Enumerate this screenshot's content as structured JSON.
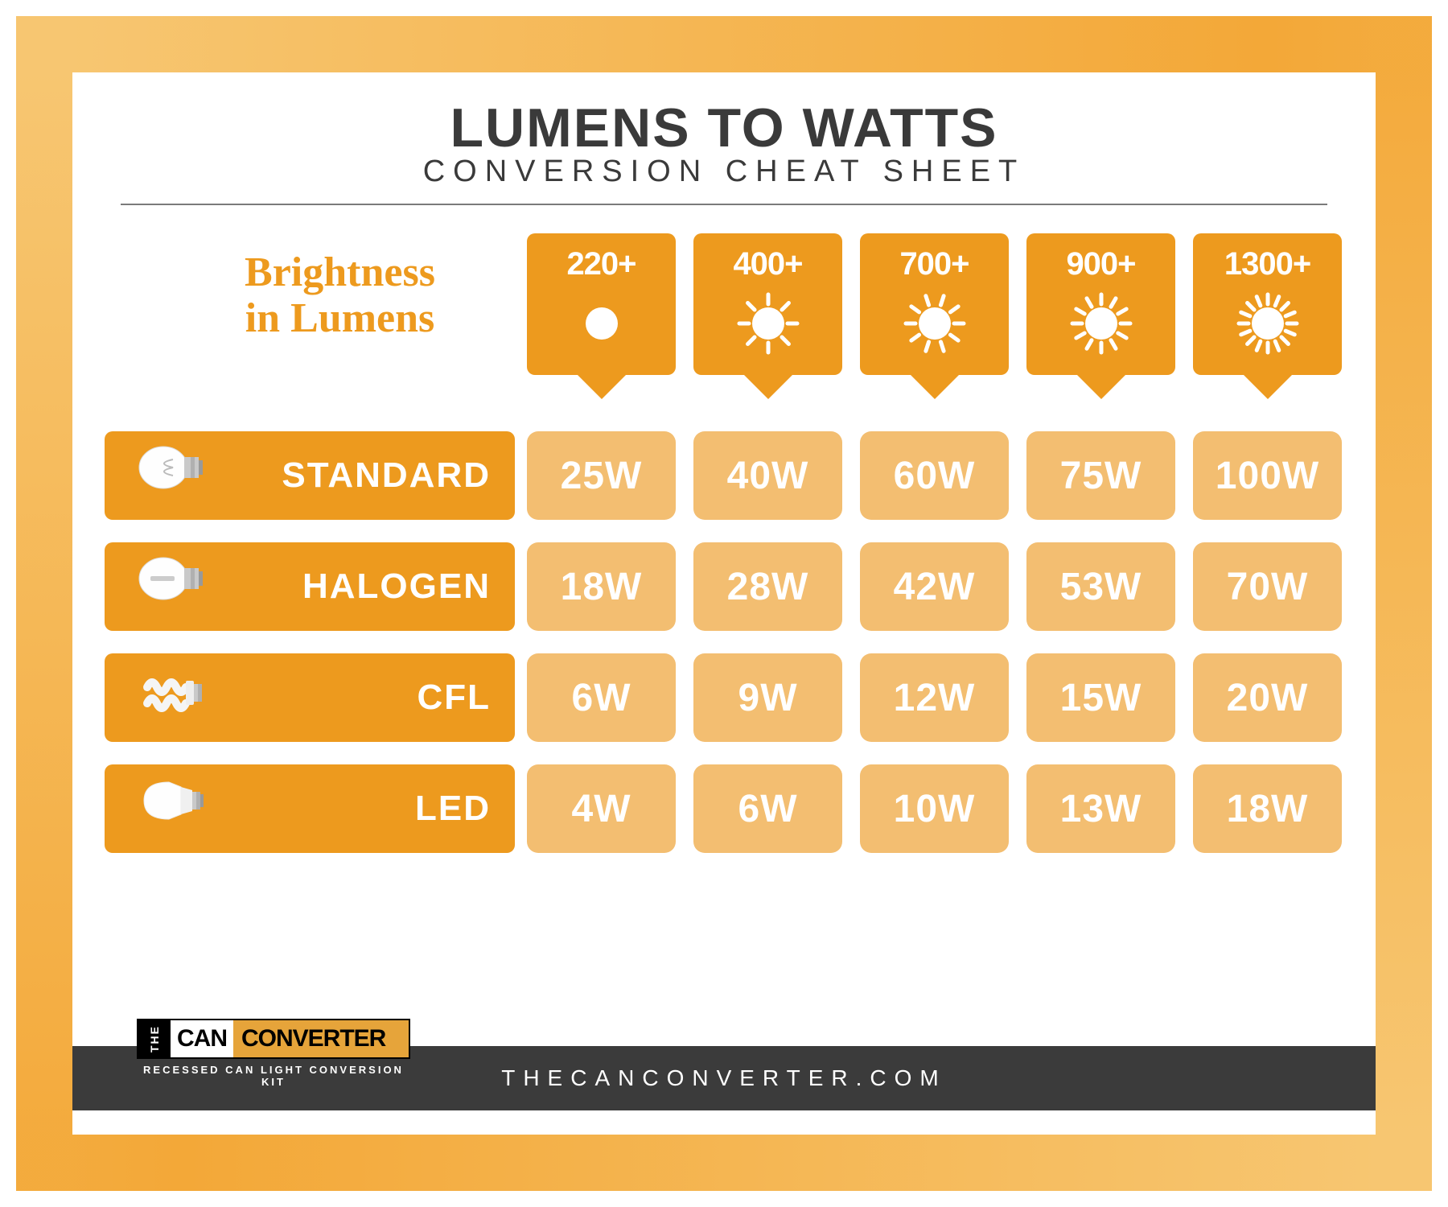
{
  "colors": {
    "frame_light": "#f7c671",
    "frame_dark": "#f3a838",
    "accent": "#ed9a1e",
    "cell_bg": "#f3be71",
    "text_dark": "#3a3a3a",
    "footer_bg": "#3b3b3b",
    "white": "#ffffff"
  },
  "title": {
    "main": "LUMENS TO WATTS",
    "sub": "CONVERSION CHEAT SHEET",
    "main_fontsize": 68,
    "sub_fontsize": 38
  },
  "brightness_label": {
    "line1": "Brightness",
    "line2": "in Lumens",
    "fontsize": 52
  },
  "lumen_levels": [
    "220+",
    "400+",
    "700+",
    "900+",
    "1300+"
  ],
  "sun_ray_counts": [
    0,
    8,
    10,
    12,
    16
  ],
  "rows": [
    {
      "name": "STANDARD",
      "bulb_type": "incandescent",
      "watts": [
        "25W",
        "40W",
        "60W",
        "75W",
        "100W"
      ]
    },
    {
      "name": "HALOGEN",
      "bulb_type": "halogen",
      "watts": [
        "18W",
        "28W",
        "42W",
        "53W",
        "70W"
      ]
    },
    {
      "name": "CFL",
      "bulb_type": "cfl",
      "watts": [
        "6W",
        "9W",
        "12W",
        "15W",
        "20W"
      ]
    },
    {
      "name": "LED",
      "bulb_type": "led",
      "watts": [
        "4W",
        "6W",
        "10W",
        "13W",
        "18W"
      ]
    }
  ],
  "cell_style": {
    "fontsize": 48,
    "radius": 14
  },
  "row_label_style": {
    "fontsize": 44
  },
  "footer": {
    "url": "THECANCONVERTER.COM",
    "logo": {
      "the": "THE",
      "can": "CAN",
      "converter": "CONVERTER",
      "sub": "RECESSED CAN LIGHT CONVERSION KIT"
    }
  }
}
